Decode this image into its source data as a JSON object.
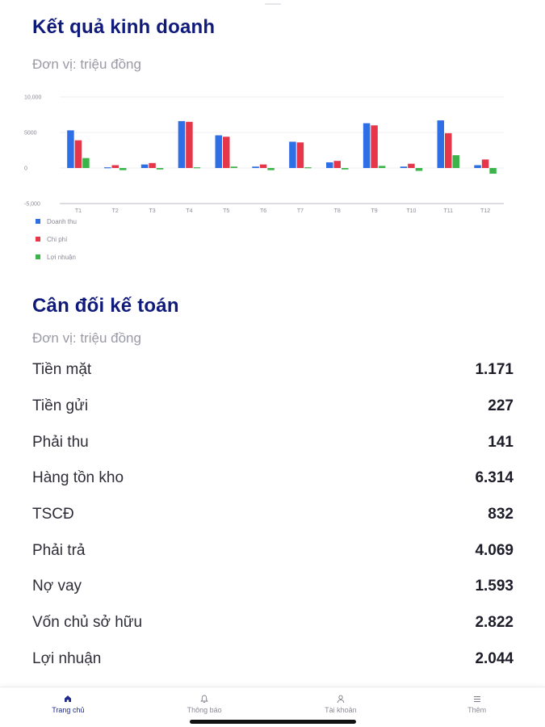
{
  "business_results": {
    "title": "Kết quả kinh doanh",
    "unit": "Đơn vị: triệu đồng"
  },
  "chart_data": {
    "type": "bar",
    "categories": [
      "T1",
      "T2",
      "T3",
      "T4",
      "T5",
      "T6",
      "T7",
      "T8",
      "T9",
      "T10",
      "T11",
      "T12"
    ],
    "series": [
      {
        "name": "Doanh thu",
        "color": "#2f6fe6",
        "values": [
          5300,
          100,
          500,
          6600,
          4600,
          200,
          3700,
          800,
          6300,
          200,
          6700,
          400
        ]
      },
      {
        "name": "Chi phí",
        "color": "#e5364a",
        "values": [
          3900,
          400,
          700,
          6500,
          4400,
          500,
          3600,
          1000,
          6000,
          600,
          4900,
          1200
        ]
      },
      {
        "name": "Lợi nhuận",
        "color": "#3bb54a",
        "values": [
          1400,
          -300,
          -200,
          100,
          200,
          -300,
          100,
          -200,
          300,
          -400,
          1800,
          -800
        ]
      }
    ],
    "yticks": [
      "10,000",
      "5000",
      "0",
      "-5,000"
    ],
    "ytick_values": [
      10000,
      5000,
      0,
      -5000
    ],
    "ylim": [
      -5000,
      10000
    ],
    "legend_position": "bottom-left",
    "grid": true
  },
  "balance_sheet": {
    "title": "Cân đối kế toán",
    "unit": "Đơn vị: triệu đồng",
    "items": [
      {
        "label": "Tiền mặt",
        "value": "1.171"
      },
      {
        "label": "Tiền gửi",
        "value": "227"
      },
      {
        "label": "Phải thu",
        "value": "141"
      },
      {
        "label": "Hàng tồn kho",
        "value": "6.314"
      },
      {
        "label": "TSCĐ",
        "value": "832"
      },
      {
        "label": "Phải trả",
        "value": "4.069"
      },
      {
        "label": "Nợ vay",
        "value": "1.593"
      },
      {
        "label": "Vốn chủ sở hữu",
        "value": "2.822"
      },
      {
        "label": "Lợi nhuận",
        "value": "2.044"
      }
    ]
  },
  "nav": {
    "items": [
      {
        "label": "Trang chủ",
        "icon": "home-icon"
      },
      {
        "label": "Thông báo",
        "icon": "bell-icon"
      },
      {
        "label": "Tài khoản",
        "icon": "user-icon"
      },
      {
        "label": "Thêm",
        "icon": "menu-icon"
      }
    ],
    "active_index": 0,
    "active_color": "#1f2a8a"
  }
}
